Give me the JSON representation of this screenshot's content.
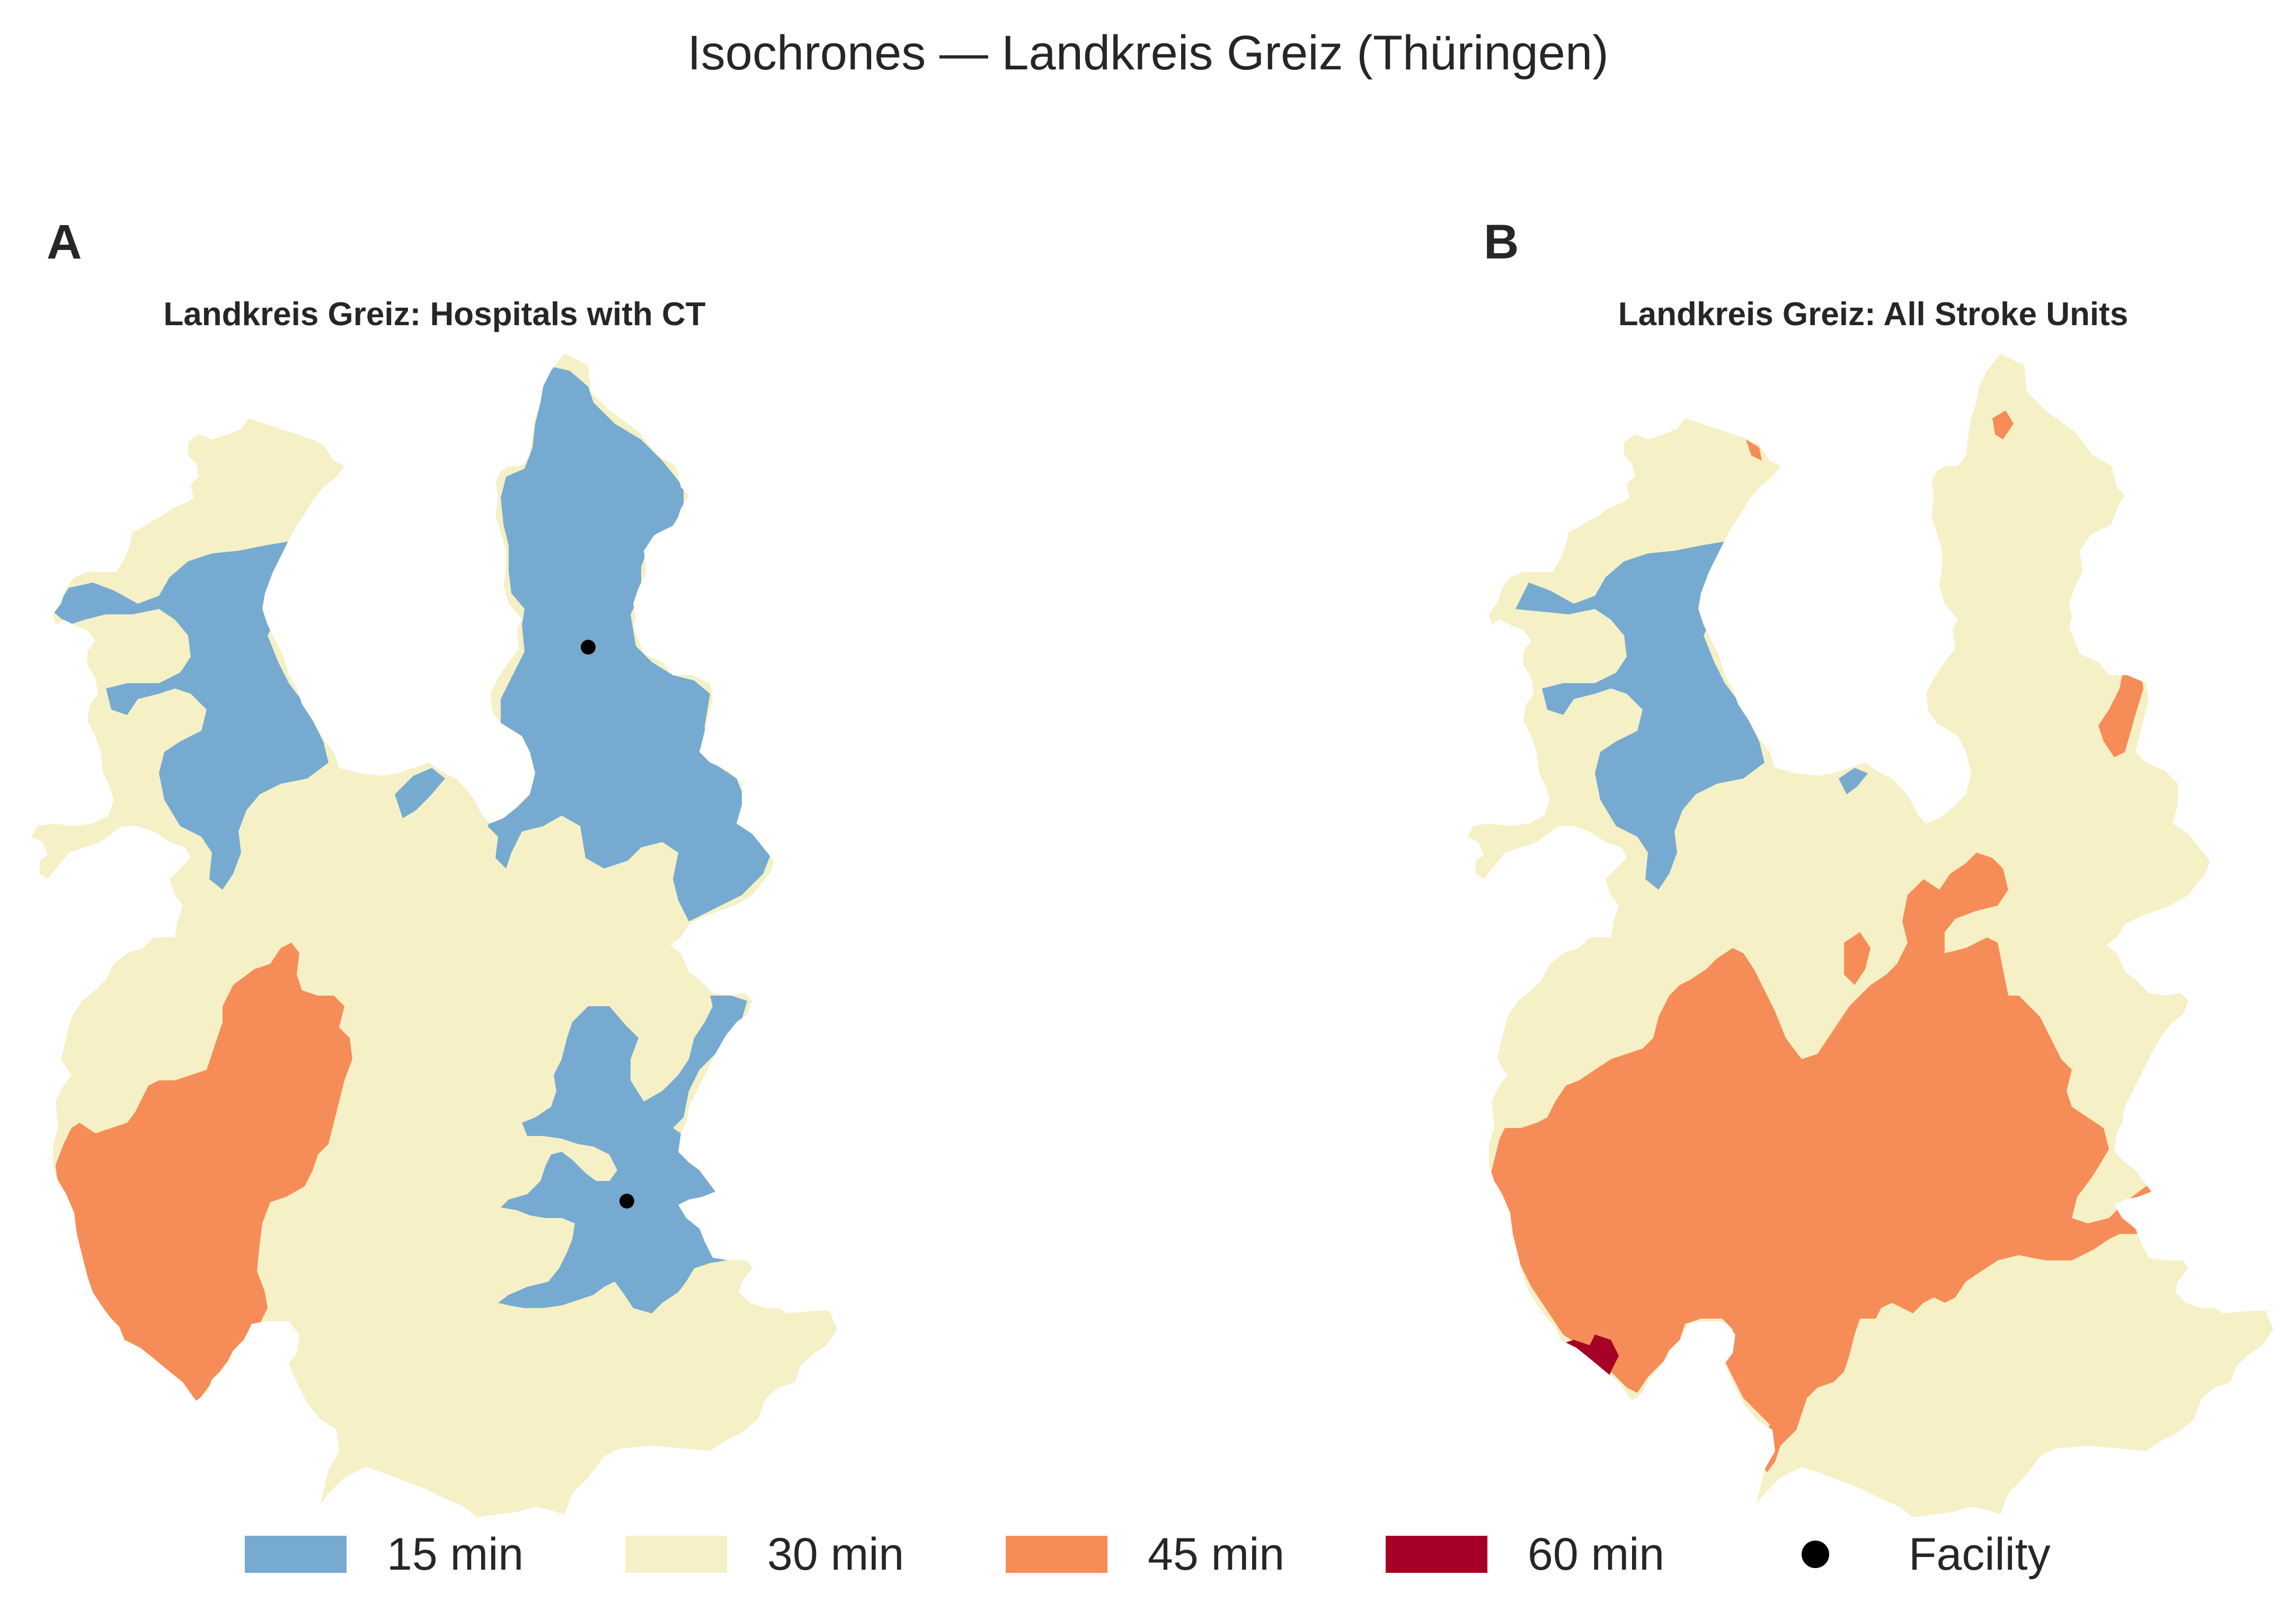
{
  "figure_title": "Isochrones — Landkreis Greiz (Thüringen)",
  "panels": [
    {
      "letter": "A",
      "title": "Landkreis Greiz: Hospitals with CT"
    },
    {
      "letter": "B",
      "title": "Landkreis Greiz: All Stroke Units"
    }
  ],
  "legend": [
    {
      "label": "15 min",
      "color": "#76aad1"
    },
    {
      "label": "30 min",
      "color": "#f5f0c6"
    },
    {
      "label": "45 min",
      "color": "#f68d58"
    },
    {
      "label": "60 min",
      "color": "#a50026"
    },
    {
      "label": "Facility",
      "color": "#000000",
      "icon": "dot-icon"
    }
  ],
  "colors": {
    "15 min": "#76aad1",
    "30 min": "#f5f0c6",
    "45 min": "#f68d58",
    "60 min": "#a50026",
    "boundary": "#000000"
  }
}
